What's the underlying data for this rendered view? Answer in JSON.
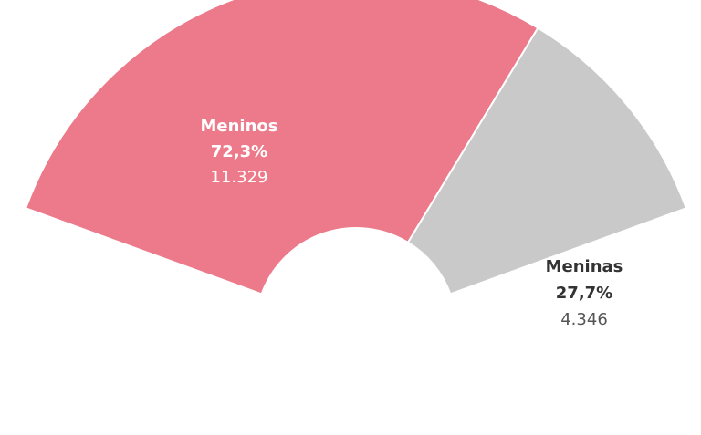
{
  "chart_data": {
    "type": "pie",
    "variant": "half-donut",
    "slices": [
      {
        "name": "Meninos",
        "percent_label": "72,3%",
        "count_label": "11.329",
        "value": 11329,
        "share": 72.3,
        "color": "#ec7a8a",
        "text_color": "#ffffff"
      },
      {
        "name": "Meninas",
        "percent_label": "27,7%",
        "count_label": "4.346",
        "value": 4346,
        "share": 27.7,
        "color": "#c9c9c9",
        "text_color": "#333333"
      }
    ]
  }
}
